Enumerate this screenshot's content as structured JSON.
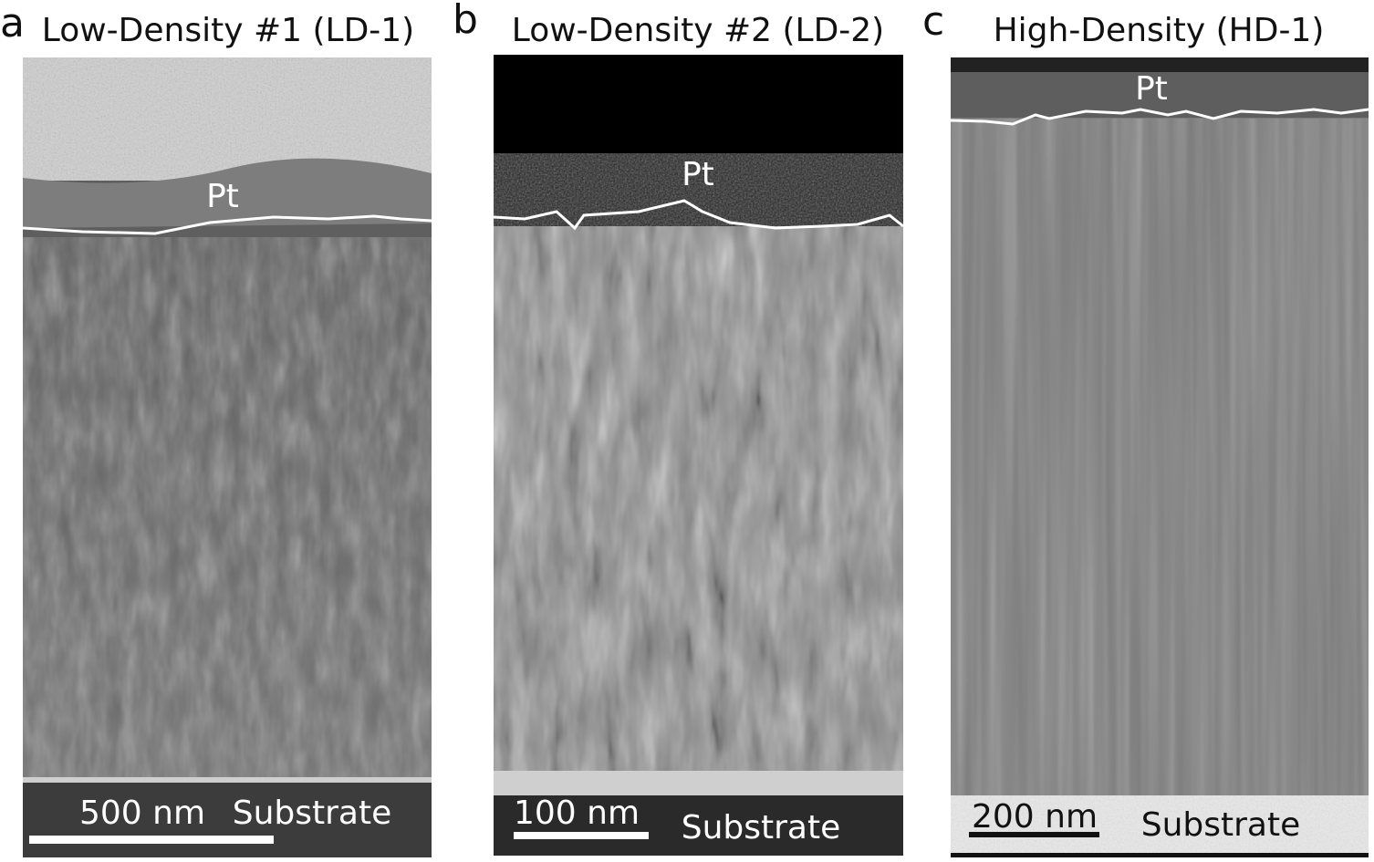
{
  "panels": [
    {
      "letter": "a",
      "title": "Low-Density #1 (LD-1)",
      "layer_label": "Pt",
      "scale_bar": "500 nm",
      "substrate_label": "Substrate"
    },
    {
      "letter": "b",
      "title": "Low-Density #2 (LD-2)",
      "layer_label": "Pt",
      "scale_bar": "100 nm",
      "substrate_label": "Substrate"
    },
    {
      "letter": "c",
      "title": "High-Density (HD-1)",
      "layer_label": "Pt",
      "scale_bar": "200 nm",
      "substrate_label": "Substrate"
    }
  ]
}
